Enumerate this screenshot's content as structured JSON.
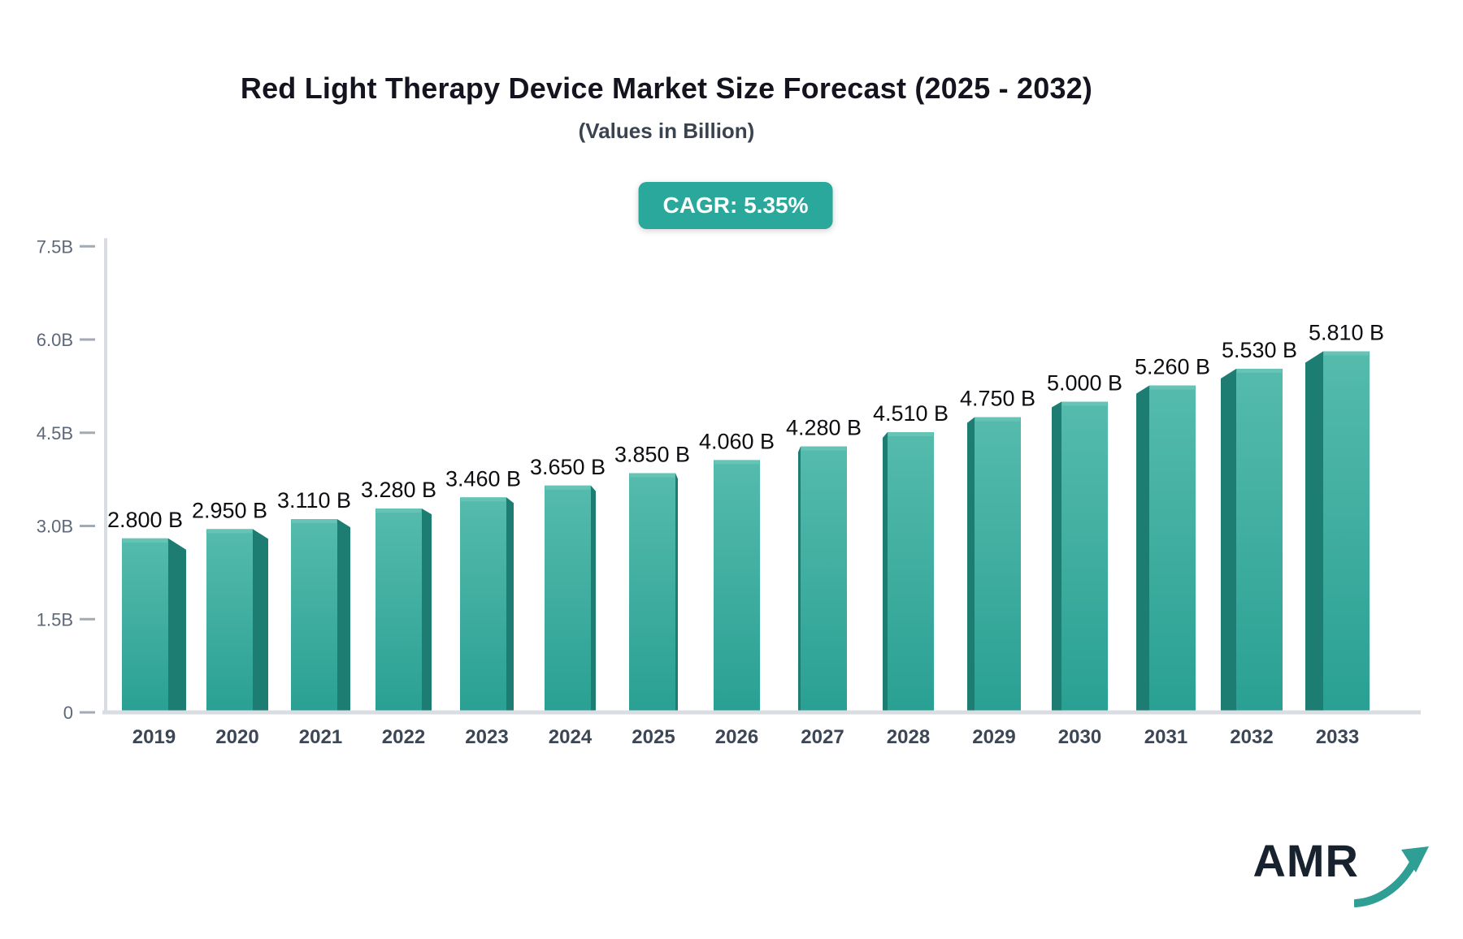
{
  "header": {
    "title": "Red Light Therapy Device Market Size Forecast (2025 - 2032)",
    "subtitle": "(Values in Billion)",
    "cagr_badge": "CAGR: 5.35%"
  },
  "chart_data": {
    "type": "bar",
    "title": "Red Light Therapy Device Market Size Forecast (2025 - 2032)",
    "subtitle": "(Values in Billion)",
    "xlabel": "",
    "ylabel": "",
    "ylim": [
      0,
      7.5
    ],
    "grid": false,
    "legend": false,
    "categories": [
      "2019",
      "2020",
      "2021",
      "2022",
      "2023",
      "2024",
      "2025",
      "2026",
      "2027",
      "2028",
      "2029",
      "2030",
      "2031",
      "2032",
      "2033"
    ],
    "values": [
      2.8,
      2.95,
      3.11,
      3.28,
      3.46,
      3.65,
      3.85,
      4.06,
      4.28,
      4.51,
      4.75,
      5.0,
      5.26,
      5.53,
      5.81
    ],
    "value_labels": [
      "2.800 B",
      "2.950 B",
      "3.110 B",
      "3.280 B",
      "3.460 B",
      "3.650 B",
      "3.850 B",
      "4.060 B",
      "4.280 B",
      "4.510 B",
      "4.750 B",
      "5.000 B",
      "5.260 B",
      "5.530 B",
      "5.810 B"
    ],
    "yticks": [
      {
        "v": 0,
        "label": "0"
      },
      {
        "v": 1.5,
        "label": "1.5B"
      },
      {
        "v": 3.0,
        "label": "3.0B"
      },
      {
        "v": 4.5,
        "label": "4.5B"
      },
      {
        "v": 6.0,
        "label": "6.0B"
      },
      {
        "v": 7.5,
        "label": "7.5B"
      }
    ],
    "colors": {
      "bar_front_top": "#55bbad",
      "bar_front_bottom": "#29a093",
      "bar_side": "#1e7d73",
      "bar_bevel": "#66c4b6",
      "axis_line": "#d9dce1",
      "tick_dash": "#a2aab4",
      "tick_text": "#5d6878",
      "year_text": "#3c4655",
      "value_text": "#0d0d12",
      "badge_bg": "#2aa89b"
    }
  },
  "branding": {
    "logo_text": "AMR",
    "logo_arrow_color": "#2f9e94"
  }
}
